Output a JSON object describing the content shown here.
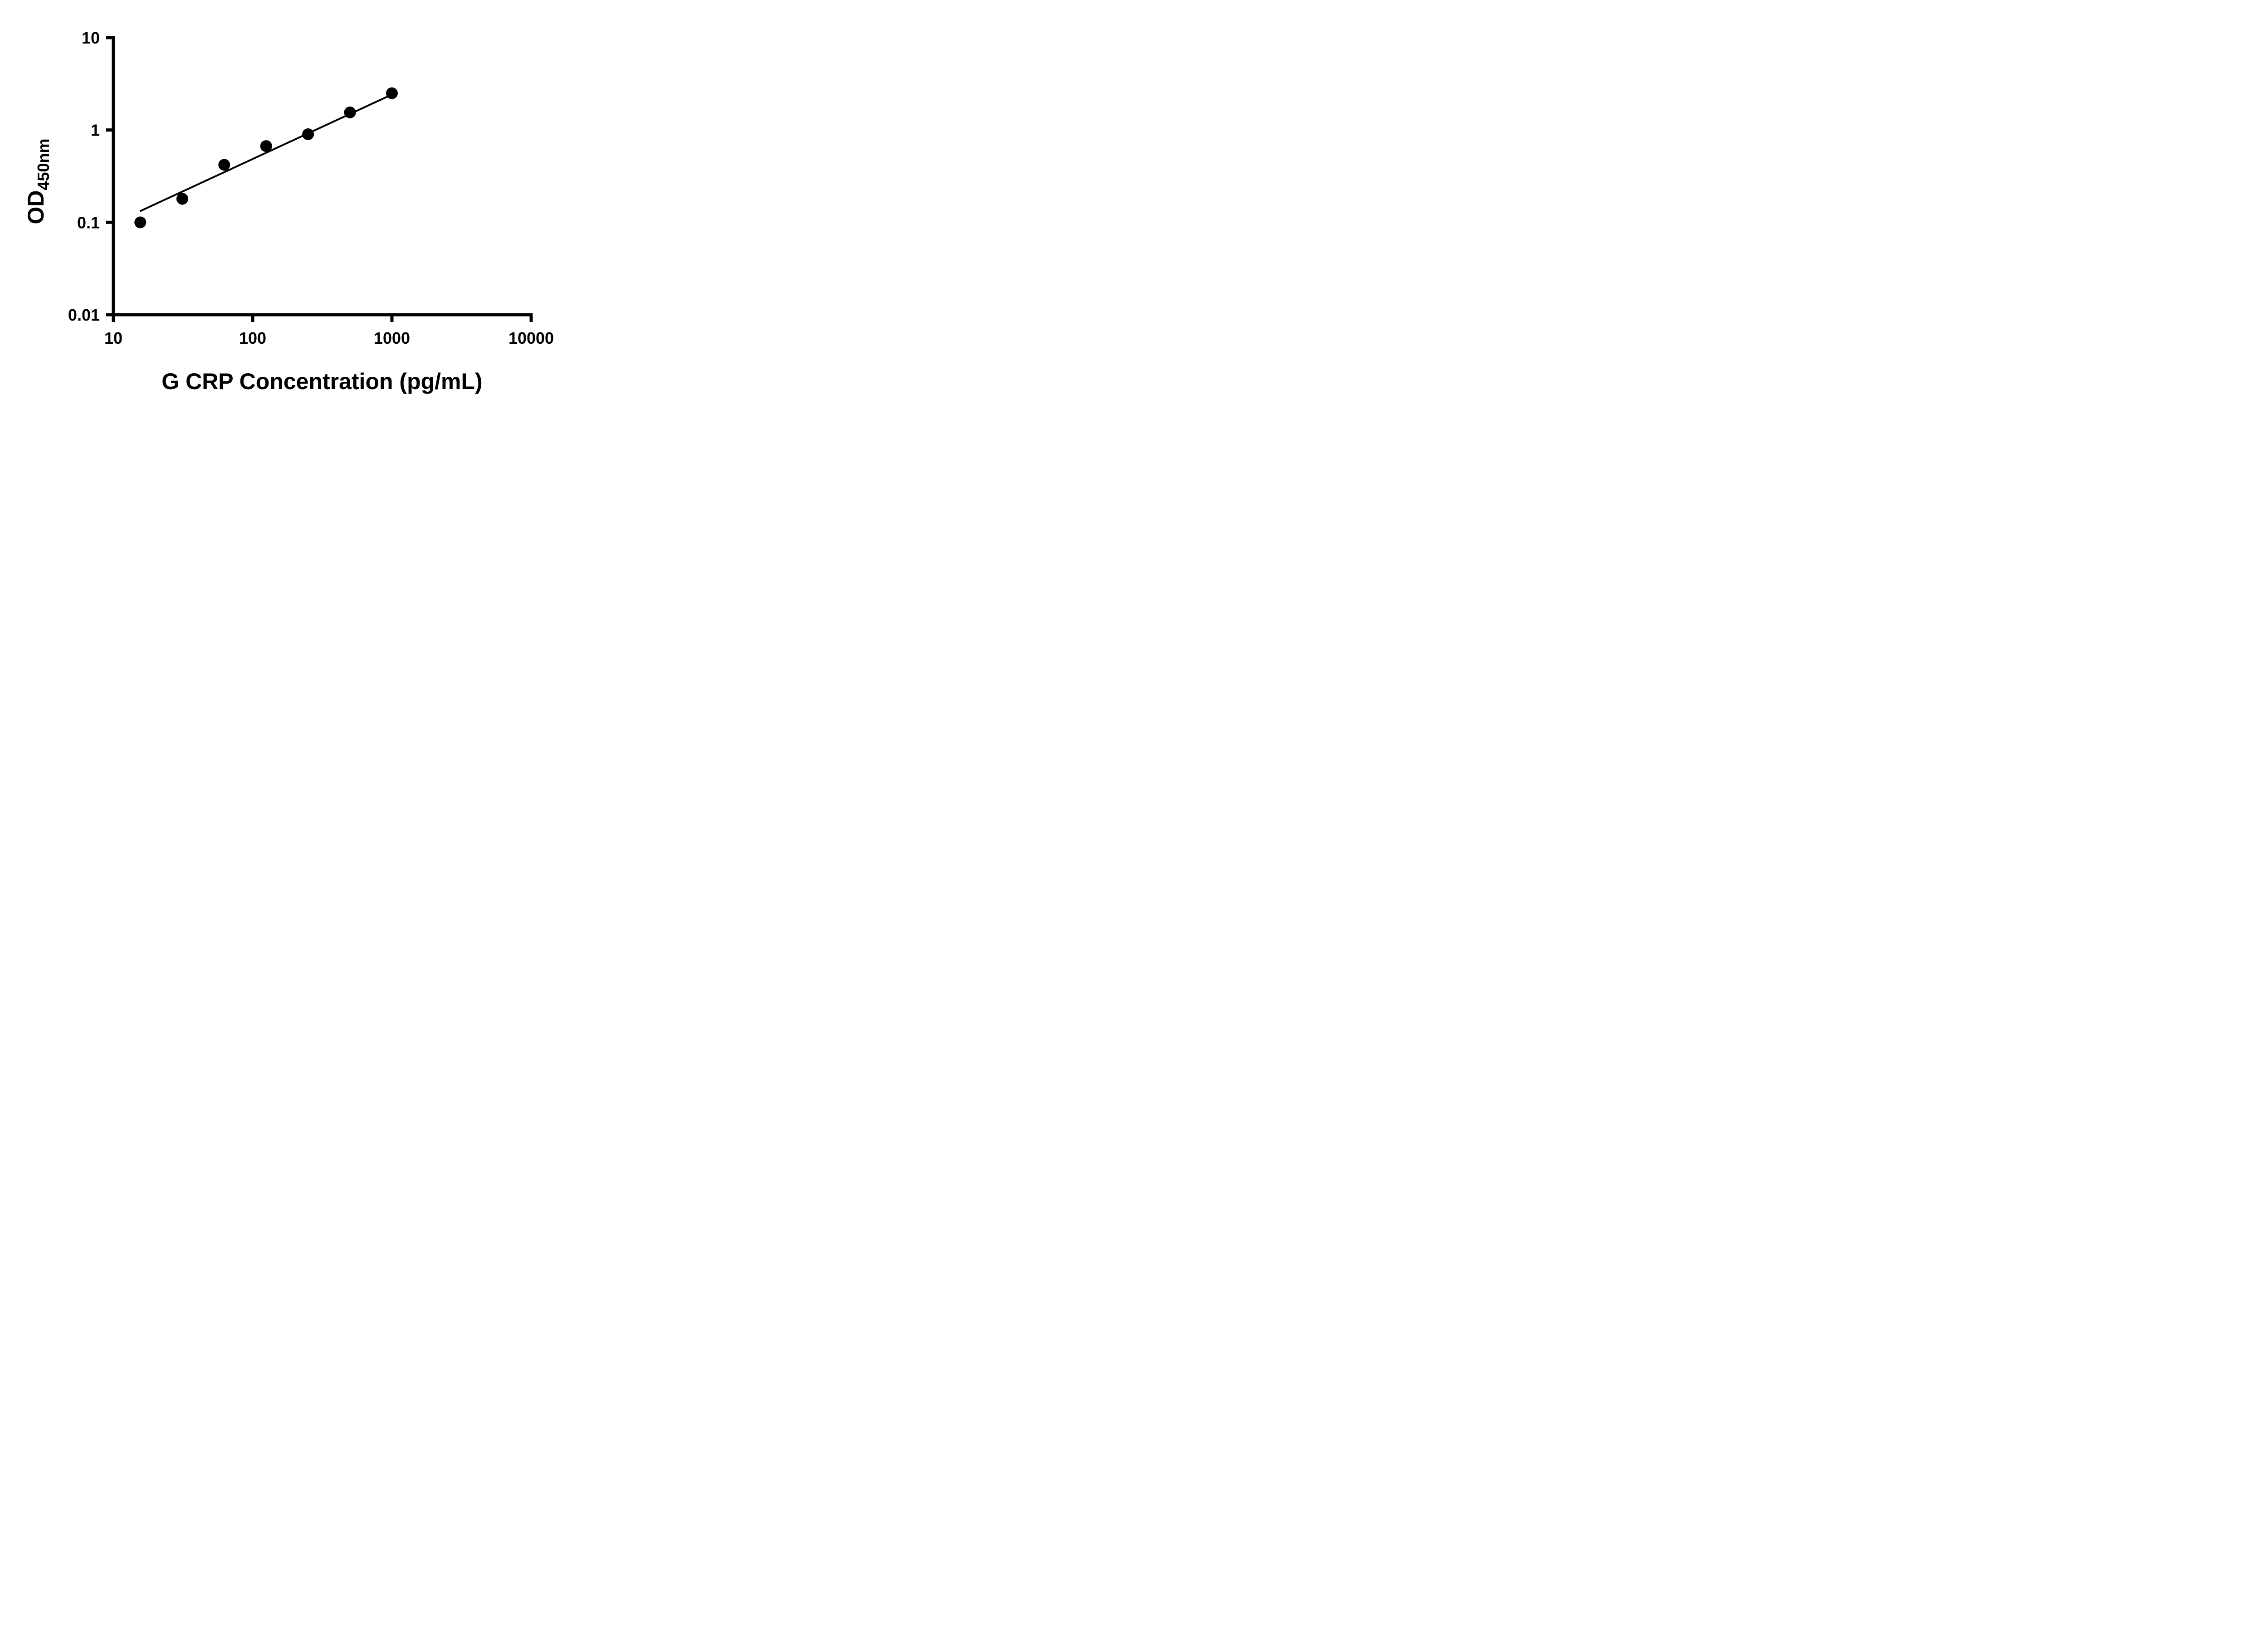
{
  "labels": {
    "y_main": "OD",
    "y_sub": "450nm"
  },
  "chart_data": {
    "type": "scatter",
    "title": "",
    "xlabel": "G CRP Concentration (pg/mL)",
    "ylabel": "OD450nm",
    "x_scale": "log",
    "y_scale": "log",
    "xlim": [
      10,
      10000
    ],
    "ylim": [
      0.01,
      10
    ],
    "x_ticks": [
      10,
      100,
      1000,
      10000
    ],
    "x_tick_labels": [
      "10",
      "100",
      "1000",
      "10000"
    ],
    "y_ticks": [
      0.01,
      0.1,
      1,
      10
    ],
    "y_tick_labels": [
      "0.01",
      "0.1",
      "1",
      "10"
    ],
    "grid": "off",
    "legend": null,
    "points": [
      {
        "x": 15.6,
        "y": 0.1
      },
      {
        "x": 31.25,
        "y": 0.18
      },
      {
        "x": 62.5,
        "y": 0.42
      },
      {
        "x": 125,
        "y": 0.67
      },
      {
        "x": 250,
        "y": 0.9
      },
      {
        "x": 500,
        "y": 1.55
      },
      {
        "x": 1000,
        "y": 2.5
      }
    ],
    "trend_line": {
      "x1": 15.5,
      "y1": 0.132,
      "x2": 1000,
      "y2": 2.42
    },
    "marker_color": "#000000",
    "line_color": "#000000",
    "background": "#ffffff"
  }
}
